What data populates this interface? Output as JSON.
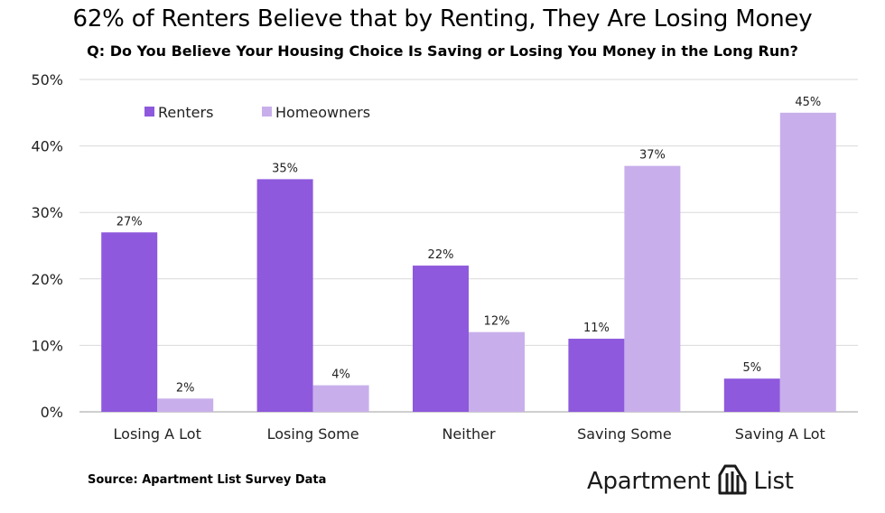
{
  "title": "62% of Renters Believe that by Renting, They Are Losing Money",
  "subtitle": "Q: Do You Believe Your Housing Choice Is Saving or Losing You Money in the Long Run?",
  "source": "Source: Apartment List Survey Data",
  "brand": {
    "word1": "Apartment",
    "word2": "List",
    "logo_icon": "apartment-list-logo-icon"
  },
  "colors": {
    "renters": "#8e59dc",
    "homeowners": "#c8afeb",
    "grid": "#d9d9d9",
    "axis": "#bfbfbf",
    "text": "#222222"
  },
  "chart_data": {
    "type": "bar",
    "categories": [
      "Losing A Lot",
      "Losing Some",
      "Neither",
      "Saving Some",
      "Saving A Lot"
    ],
    "series": [
      {
        "name": "Renters",
        "values": [
          27,
          35,
          22,
          11,
          5
        ],
        "labels": [
          "27%",
          "35%",
          "22%",
          "11%",
          "5%"
        ]
      },
      {
        "name": "Homeowners",
        "values": [
          2,
          4,
          12,
          37,
          45
        ],
        "labels": [
          "2%",
          "4%",
          "12%",
          "37%",
          "45%"
        ]
      }
    ],
    "ylim": [
      0,
      50
    ],
    "yticks": [
      0,
      10,
      20,
      30,
      40,
      50
    ],
    "ytick_labels": [
      "0%",
      "10%",
      "20%",
      "30%",
      "40%",
      "50%"
    ],
    "grid": true,
    "legend": "top-left"
  }
}
